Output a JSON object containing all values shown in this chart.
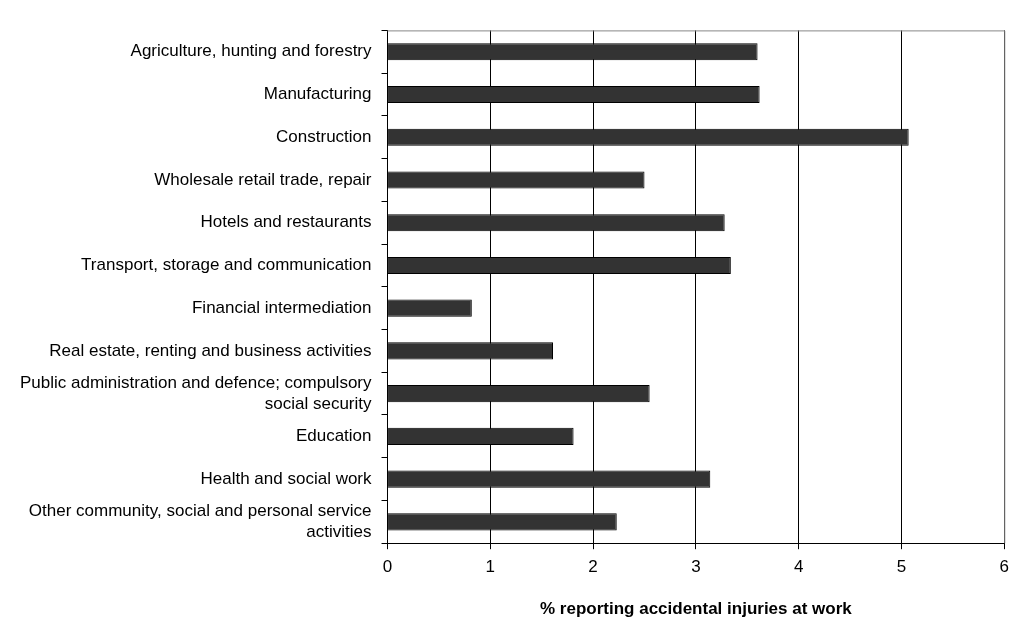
{
  "chart_data": {
    "type": "bar",
    "orientation": "horizontal",
    "categories": [
      "Agriculture, hunting and forestry",
      "Manufacturing",
      "Construction",
      "Wholesale retail trade, repair",
      "Hotels and restaurants",
      "Transport, storage and communication",
      "Financial intermediation",
      "Real estate, renting and business activities",
      "Public administration and defence; compulsory social security",
      "Education",
      "Health and social work",
      "Other community, social and personal service activities"
    ],
    "values": [
      3.6,
      3.62,
      5.07,
      2.5,
      3.28,
      3.34,
      0.82,
      1.61,
      2.55,
      1.81,
      3.14,
      2.23
    ],
    "color": "#333333",
    "xlabel": "% reporting accidental injuries at work",
    "xlim": [
      0,
      6
    ],
    "xticks": [
      0,
      1,
      2,
      3,
      4,
      5,
      6
    ],
    "grid": "x",
    "legend": false
  }
}
